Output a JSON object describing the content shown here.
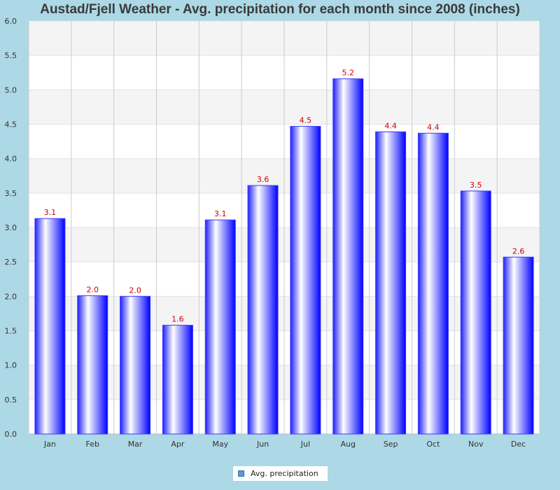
{
  "chart_data": {
    "type": "bar",
    "title": "Austad/Fjell Weather - Avg. precipitation for each month since 2008 (inches)",
    "categories": [
      "Jan",
      "Feb",
      "Mar",
      "Apr",
      "May",
      "Jun",
      "Jul",
      "Aug",
      "Sep",
      "Oct",
      "Nov",
      "Dec"
    ],
    "series": [
      {
        "name": "Avg. precipitation",
        "values": [
          3.13,
          2.01,
          2.0,
          1.58,
          3.11,
          3.61,
          4.47,
          5.16,
          4.39,
          4.37,
          3.53,
          2.57
        ],
        "labels": [
          "3.1",
          "2.0",
          "2.0",
          "1.6",
          "3.1",
          "3.6",
          "4.5",
          "5.2",
          "4.4",
          "4.4",
          "3.5",
          "2.6"
        ]
      }
    ],
    "ylim": [
      0,
      6
    ],
    "yticks": [
      "0.0",
      "0.5",
      "1.0",
      "1.5",
      "2.0",
      "2.5",
      "3.0",
      "3.5",
      "4.0",
      "4.5",
      "5.0",
      "5.5",
      "6.0"
    ],
    "xlabel": "",
    "ylabel": "",
    "grid": true,
    "legend_position": "bottom-center",
    "colors": {
      "background": "#add8e6",
      "plot_band_light": "#ffffff",
      "plot_band_dark": "#f4f4f4",
      "bar_edge": "#0000ff",
      "bar_center": "#ffffff",
      "value_label": "#cc0000"
    }
  }
}
